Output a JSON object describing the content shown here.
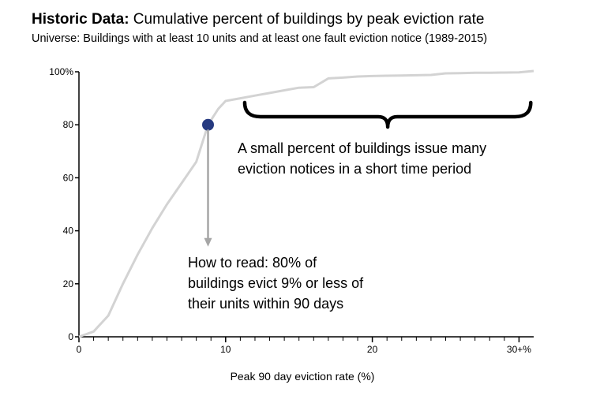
{
  "header": {
    "title_bold": "Historic Data:",
    "title_rest": " Cumulative percent of buildings by peak eviction rate",
    "subtitle": "Universe: Buildings with at least 10 units and at least one fault eviction notice (1989-2015)"
  },
  "chart_data": {
    "type": "line",
    "title": "Historic Data: Cumulative percent of buildings by peak eviction rate",
    "subtitle": "Universe: Buildings with at least 10 units and at least one fault eviction notice (1989-2015)",
    "xlabel": "Peak 90 day eviction rate (%)",
    "ylabel": "",
    "xlim": [
      0,
      31
    ],
    "ylim": [
      0,
      100
    ],
    "x_major_ticks": [
      0,
      10,
      20,
      30
    ],
    "x_tick_labels": [
      "0",
      "10",
      "20",
      "30+%"
    ],
    "x_minor_step": 1,
    "y_ticks": [
      0,
      20,
      40,
      60,
      80,
      100
    ],
    "y_tick_labels": [
      "0",
      "20",
      "40",
      "60",
      "80",
      "100%"
    ],
    "grid": false,
    "legend": "none",
    "line_color": "#d3d3d3",
    "series": [
      {
        "x": [
          0,
          1,
          2,
          3,
          4,
          5,
          6,
          7,
          8,
          8.8,
          9.5,
          10,
          11,
          12,
          13,
          14,
          15,
          16,
          17,
          18,
          19,
          20,
          21,
          22,
          23,
          24,
          25,
          26,
          27,
          28,
          29,
          30,
          31
        ],
        "values": [
          0,
          2,
          8,
          20,
          31,
          41,
          50,
          58,
          66,
          80,
          86,
          89,
          90,
          91,
          92,
          93,
          94,
          94.2,
          97.5,
          97.8,
          98.2,
          98.4,
          98.5,
          98.6,
          98.7,
          98.8,
          99.4,
          99.5,
          99.6,
          99.6,
          99.7,
          99.8,
          100.3
        ]
      }
    ],
    "highlight_point": {
      "x": 8.8,
      "y": 80,
      "color": "#263a80"
    },
    "annotations": [
      {
        "lines": [
          "A small percent of buildings issue many",
          "eviction notices in a short time period"
        ],
        "brace_from_x": 11.3,
        "brace_to_x": 30.8
      },
      {
        "lines": [
          "How to read: 80% of",
          "buildings evict 9% or less of",
          "their units within 90 days"
        ],
        "arrow_from_y": 80,
        "arrow_to_y": 34,
        "arrow_color": "#a6a6a6"
      }
    ]
  }
}
